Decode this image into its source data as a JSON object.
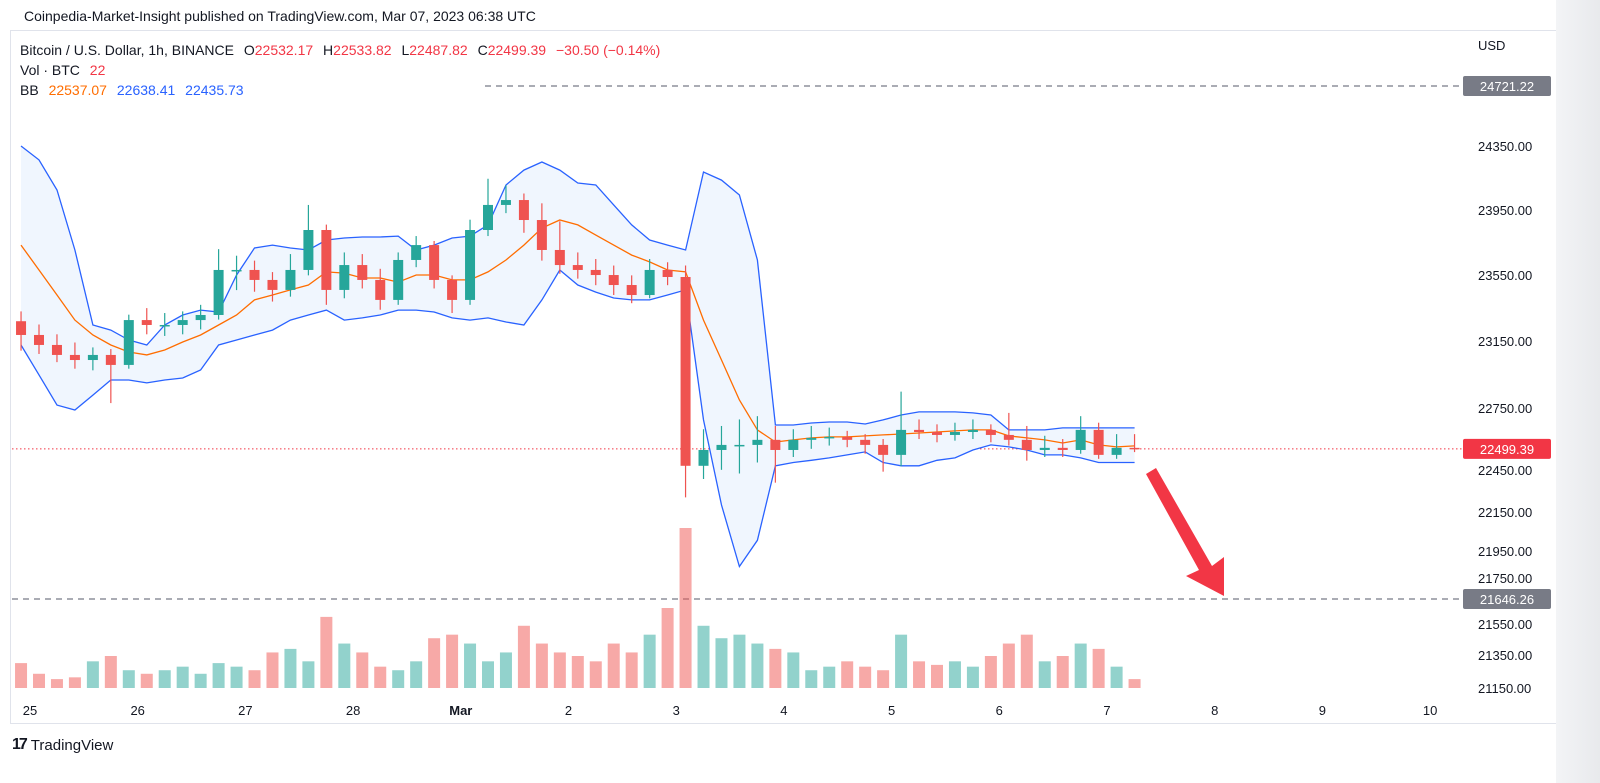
{
  "published": "Coinpedia-Market-Insight published on TradingView.com, Mar 07, 2023 06:38 UTC",
  "legend": {
    "symbol": "Bitcoin / U.S. Dollar, 1h, BINANCE",
    "o_label": "O",
    "o": "22532.17",
    "h_label": "H",
    "h": "22533.82",
    "l_label": "L",
    "l": "22487.82",
    "c_label": "C",
    "c": "22499.39",
    "change": "−30.50 (−0.14%)",
    "vol_label": "Vol · BTC",
    "vol": "22",
    "bb_label": "BB",
    "bb_basis": "22537.07",
    "bb_upper": "22638.41",
    "bb_lower": "22435.73"
  },
  "footer": {
    "logo_text": "TradingView"
  },
  "chart_data": {
    "type": "candlestick",
    "title": "Bitcoin / U.S. Dollar, 1h, BINANCE",
    "currency": "USD",
    "colors": {
      "up": "#26a69a",
      "down": "#ef5350",
      "bb_basis": "#ff6d00",
      "bb_band": "#2962ff",
      "bb_fill": "#f0f6fe",
      "arrow": "#f23645",
      "last_price": "#f23645",
      "level": "#787b86"
    },
    "y_ticks": [
      "24350.00",
      "23950.00",
      "23550.00",
      "23150.00",
      "22750.00",
      "22450.00",
      "22150.00",
      "21950.00",
      "21750.00",
      "21550.00",
      "21350.00",
      "21150.00"
    ],
    "x_ticks": [
      "25",
      "26",
      "27",
      "28",
      "Mar",
      "2",
      "3",
      "4",
      "5",
      "6",
      "7",
      "8",
      "9",
      "10"
    ],
    "last_price": 22499.39,
    "last_price_label": "22499.39",
    "levels": [
      {
        "value": 24721.22,
        "label": "24721.22"
      },
      {
        "value": 21646.26,
        "label": "21646.26"
      }
    ],
    "annotation": "red downward arrow pointing to 21646.26 level",
    "candles": [
      {
        "t": "Feb 24 20:00",
        "o": 23280,
        "h": 23340,
        "l": 23100,
        "c": 23196,
        "v": 392
      },
      {
        "t": "Feb 25 00:00",
        "o": 23196,
        "h": 23260,
        "l": 23080,
        "c": 23135,
        "v": 224
      },
      {
        "t": "Feb 25 04:00",
        "o": 23135,
        "h": 23200,
        "l": 23030,
        "c": 23074,
        "v": 140
      },
      {
        "t": "Feb 25 08:00",
        "o": 23074,
        "h": 23150,
        "l": 22990,
        "c": 23043,
        "v": 168
      },
      {
        "t": "Feb 25 12:00",
        "o": 23043,
        "h": 23120,
        "l": 22980,
        "c": 23074,
        "v": 420
      },
      {
        "t": "Feb 25 16:00",
        "o": 23074,
        "h": 23110,
        "l": 22780,
        "c": 23013,
        "v": 504
      },
      {
        "t": "Feb 25 20:00",
        "o": 23013,
        "h": 23320,
        "l": 22990,
        "c": 23287,
        "v": 280
      },
      {
        "t": "Feb 26 00:00",
        "o": 23287,
        "h": 23360,
        "l": 23200,
        "c": 23257,
        "v": 224
      },
      {
        "t": "Feb 26 04:00",
        "o": 23257,
        "h": 23330,
        "l": 23190,
        "c": 23257,
        "v": 280
      },
      {
        "t": "Feb 26 08:00",
        "o": 23257,
        "h": 23340,
        "l": 23200,
        "c": 23287,
        "v": 336
      },
      {
        "t": "Feb 26 12:00",
        "o": 23287,
        "h": 23380,
        "l": 23230,
        "c": 23318,
        "v": 224
      },
      {
        "t": "Feb 26 16:00",
        "o": 23318,
        "h": 23720,
        "l": 23290,
        "c": 23593,
        "v": 392
      },
      {
        "t": "Feb 26 20:00",
        "o": 23593,
        "h": 23680,
        "l": 23470,
        "c": 23593,
        "v": 336
      },
      {
        "t": "Feb 27 00:00",
        "o": 23593,
        "h": 23650,
        "l": 23460,
        "c": 23532,
        "v": 280
      },
      {
        "t": "Feb 27 04:00",
        "o": 23532,
        "h": 23580,
        "l": 23400,
        "c": 23471,
        "v": 560
      },
      {
        "t": "Feb 27 08:00",
        "o": 23471,
        "h": 23690,
        "l": 23430,
        "c": 23593,
        "v": 616
      },
      {
        "t": "Feb 27 12:00",
        "o": 23593,
        "h": 23990,
        "l": 23560,
        "c": 23837,
        "v": 420
      },
      {
        "t": "Feb 27 16:00",
        "o": 23837,
        "h": 23870,
        "l": 23380,
        "c": 23471,
        "v": 1120
      },
      {
        "t": "Feb 27 20:00",
        "o": 23471,
        "h": 23700,
        "l": 23420,
        "c": 23623,
        "v": 700
      },
      {
        "t": "Feb 28 00:00",
        "o": 23623,
        "h": 23690,
        "l": 23480,
        "c": 23532,
        "v": 560
      },
      {
        "t": "Feb 28 04:00",
        "o": 23532,
        "h": 23600,
        "l": 23350,
        "c": 23410,
        "v": 336
      },
      {
        "t": "Feb 28 08:00",
        "o": 23410,
        "h": 23700,
        "l": 23380,
        "c": 23654,
        "v": 280
      },
      {
        "t": "Feb 28 12:00",
        "o": 23654,
        "h": 23800,
        "l": 23610,
        "c": 23745,
        "v": 420
      },
      {
        "t": "Feb 28 16:00",
        "o": 23745,
        "h": 23770,
        "l": 23480,
        "c": 23532,
        "v": 784
      },
      {
        "t": "Feb 28 20:00",
        "o": 23532,
        "h": 23560,
        "l": 23330,
        "c": 23410,
        "v": 840
      },
      {
        "t": "Mar 01 00:00",
        "o": 23410,
        "h": 23900,
        "l": 23380,
        "c": 23837,
        "v": 700
      },
      {
        "t": "Mar 01 04:00",
        "o": 23837,
        "h": 24150,
        "l": 23800,
        "c": 23990,
        "v": 420
      },
      {
        "t": "Mar 01 08:00",
        "o": 23990,
        "h": 24110,
        "l": 23940,
        "c": 24020,
        "v": 560
      },
      {
        "t": "Mar 01 12:00",
        "o": 24020,
        "h": 24060,
        "l": 23820,
        "c": 23898,
        "v": 980
      },
      {
        "t": "Mar 01 16:00",
        "o": 23898,
        "h": 24000,
        "l": 23650,
        "c": 23715,
        "v": 700
      },
      {
        "t": "Mar 01 20:00",
        "o": 23715,
        "h": 23890,
        "l": 23570,
        "c": 23623,
        "v": 560
      },
      {
        "t": "Mar 02 00:00",
        "o": 23623,
        "h": 23700,
        "l": 23540,
        "c": 23593,
        "v": 504
      },
      {
        "t": "Mar 02 04:00",
        "o": 23593,
        "h": 23660,
        "l": 23500,
        "c": 23562,
        "v": 420
      },
      {
        "t": "Mar 02 08:00",
        "o": 23562,
        "h": 23620,
        "l": 23440,
        "c": 23501,
        "v": 700
      },
      {
        "t": "Mar 02 12:00",
        "o": 23501,
        "h": 23560,
        "l": 23390,
        "c": 23440,
        "v": 560
      },
      {
        "t": "Mar 02 16:00",
        "o": 23440,
        "h": 23660,
        "l": 23420,
        "c": 23593,
        "v": 840
      },
      {
        "t": "Mar 02 20:00",
        "o": 23593,
        "h": 23640,
        "l": 23500,
        "c": 23550,
        "v": 1260
      },
      {
        "t": "Mar 03 00:00",
        "o": 23550,
        "h": 23620,
        "l": 22230,
        "c": 22402,
        "v": 2520
      },
      {
        "t": "Mar 03 04:00",
        "o": 22402,
        "h": 22620,
        "l": 22330,
        "c": 22493,
        "v": 980
      },
      {
        "t": "Mar 03 08:00",
        "o": 22493,
        "h": 22640,
        "l": 22380,
        "c": 22524,
        "v": 784
      },
      {
        "t": "Mar 03 12:00",
        "o": 22524,
        "h": 22680,
        "l": 22360,
        "c": 22524,
        "v": 840
      },
      {
        "t": "Mar 03 16:00",
        "o": 22524,
        "h": 22700,
        "l": 22420,
        "c": 22555,
        "v": 700
      },
      {
        "t": "Mar 03 20:00",
        "o": 22555,
        "h": 22640,
        "l": 22310,
        "c": 22493,
        "v": 616
      },
      {
        "t": "Mar 04 00:00",
        "o": 22493,
        "h": 22620,
        "l": 22450,
        "c": 22555,
        "v": 560
      },
      {
        "t": "Mar 04 04:00",
        "o": 22555,
        "h": 22640,
        "l": 22500,
        "c": 22567,
        "v": 280
      },
      {
        "t": "Mar 04 08:00",
        "o": 22567,
        "h": 22630,
        "l": 22520,
        "c": 22573,
        "v": 336
      },
      {
        "t": "Mar 04 12:00",
        "o": 22573,
        "h": 22610,
        "l": 22510,
        "c": 22555,
        "v": 420
      },
      {
        "t": "Mar 04 16:00",
        "o": 22555,
        "h": 22590,
        "l": 22470,
        "c": 22524,
        "v": 336
      },
      {
        "t": "Mar 04 20:00",
        "o": 22524,
        "h": 22560,
        "l": 22370,
        "c": 22463,
        "v": 280
      },
      {
        "t": "Mar 05 00:00",
        "o": 22463,
        "h": 22850,
        "l": 22400,
        "c": 22616,
        "v": 840
      },
      {
        "t": "Mar 05 04:00",
        "o": 22616,
        "h": 22680,
        "l": 22560,
        "c": 22603,
        "v": 420
      },
      {
        "t": "Mar 05 08:00",
        "o": 22603,
        "h": 22650,
        "l": 22540,
        "c": 22585,
        "v": 364
      },
      {
        "t": "Mar 05 12:00",
        "o": 22585,
        "h": 22660,
        "l": 22550,
        "c": 22603,
        "v": 420
      },
      {
        "t": "Mar 05 16:00",
        "o": 22603,
        "h": 22680,
        "l": 22560,
        "c": 22616,
        "v": 336
      },
      {
        "t": "Mar 05 20:00",
        "o": 22616,
        "h": 22650,
        "l": 22540,
        "c": 22585,
        "v": 504
      },
      {
        "t": "Mar 06 00:00",
        "o": 22585,
        "h": 22720,
        "l": 22520,
        "c": 22555,
        "v": 700
      },
      {
        "t": "Mar 06 04:00",
        "o": 22555,
        "h": 22640,
        "l": 22430,
        "c": 22493,
        "v": 840
      },
      {
        "t": "Mar 06 08:00",
        "o": 22493,
        "h": 22580,
        "l": 22450,
        "c": 22506,
        "v": 420
      },
      {
        "t": "Mar 06 12:00",
        "o": 22506,
        "h": 22560,
        "l": 22450,
        "c": 22493,
        "v": 504
      },
      {
        "t": "Mar 06 16:00",
        "o": 22493,
        "h": 22700,
        "l": 22470,
        "c": 22616,
        "v": 700
      },
      {
        "t": "Mar 06 20:00",
        "o": 22616,
        "h": 22660,
        "l": 22440,
        "c": 22463,
        "v": 616
      },
      {
        "t": "Mar 07 00:00",
        "o": 22463,
        "h": 22590,
        "l": 22440,
        "c": 22506,
        "v": 336
      },
      {
        "t": "Mar 07 04:00",
        "o": 22506,
        "h": 22590,
        "l": 22480,
        "c": 22499,
        "v": 140
      }
    ],
    "bb": {
      "upper": [
        24350,
        24265,
        24081,
        23715,
        23257,
        23226,
        23165,
        23135,
        23257,
        23318,
        23348,
        23336,
        23562,
        23727,
        23745,
        23727,
        23715,
        23776,
        23788,
        23794,
        23794,
        23800,
        23715,
        23745,
        23788,
        23800,
        23868,
        24112,
        24203,
        24252,
        24203,
        24124,
        24112,
        23990,
        23868,
        23776,
        23745,
        23715,
        24191,
        24142,
        24051,
        23654,
        22646,
        22646,
        22658,
        22664,
        22664,
        22652,
        22677,
        22707,
        22726,
        22726,
        22726,
        22720,
        22707,
        22616,
        22616,
        22616,
        22628,
        22628,
        22628,
        22628,
        22628
      ],
      "basis": [
        23745,
        23593,
        23440,
        23287,
        23196,
        23135,
        23092,
        23074,
        23104,
        23153,
        23196,
        23257,
        23318,
        23410,
        23440,
        23471,
        23501,
        23581,
        23574,
        23544,
        23544,
        23519,
        23562,
        23562,
        23532,
        23532,
        23581,
        23654,
        23745,
        23849,
        23898,
        23868,
        23806,
        23745,
        23684,
        23642,
        23593,
        23581,
        23287,
        23043,
        22799,
        22616,
        22542,
        22555,
        22567,
        22573,
        22573,
        22579,
        22585,
        22591,
        22597,
        22603,
        22610,
        22616,
        22616,
        22579,
        22567,
        22555,
        22536,
        22555,
        22524,
        22512,
        22518
      ],
      "lower": [
        23135,
        22952,
        22768,
        22738,
        22829,
        22921,
        22921,
        22903,
        22921,
        22933,
        22982,
        23135,
        23165,
        23196,
        23226,
        23287,
        23318,
        23348,
        23287,
        23300,
        23318,
        23348,
        23348,
        23336,
        23300,
        23287,
        23300,
        23275,
        23257,
        23410,
        23593,
        23501,
        23458,
        23422,
        23410,
        23410,
        23440,
        23471,
        22677,
        22188,
        21852,
        22005,
        22402,
        22420,
        22432,
        22445,
        22463,
        22481,
        22420,
        22402,
        22402,
        22432,
        22445,
        22493,
        22524,
        22512,
        22493,
        22463,
        22463,
        22445,
        22420,
        22420,
        22420
      ]
    }
  }
}
